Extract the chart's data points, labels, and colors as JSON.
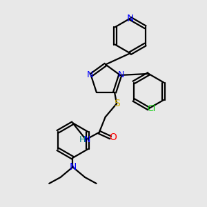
{
  "bg_color": "#e8e8e8",
  "bond_color": "#000000",
  "atom_colors": {
    "N": "#0000ff",
    "S": "#ccaa00",
    "O": "#ff0000",
    "Cl": "#00cc00",
    "H": "#008080",
    "C": "#000000"
  },
  "font_size": 9,
  "fig_size": [
    3.0,
    3.0
  ],
  "dpi": 100
}
